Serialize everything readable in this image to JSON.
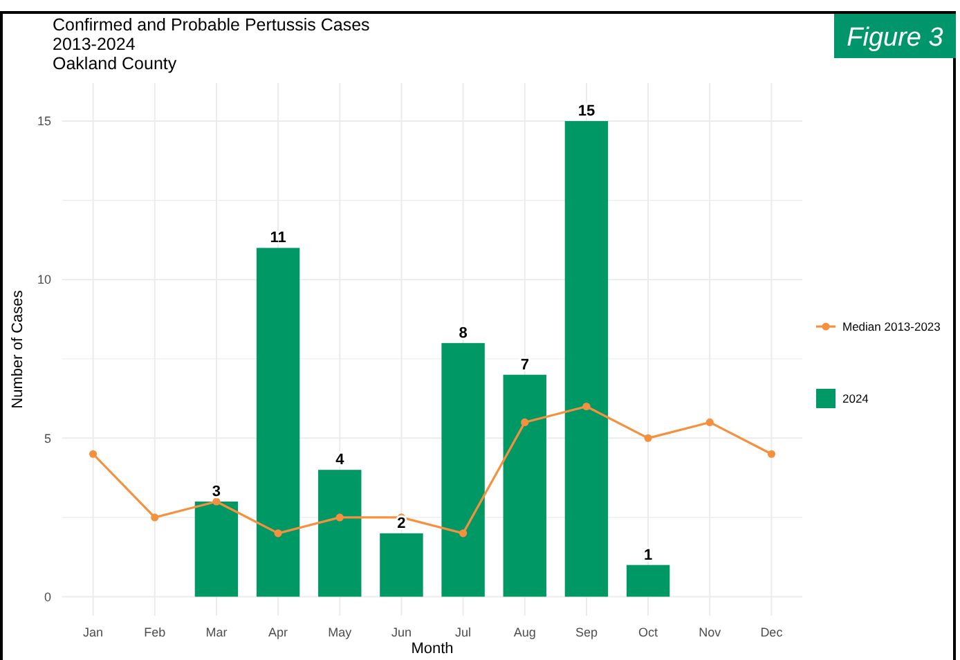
{
  "chart_data": {
    "type": "bar",
    "title": "Confirmed and Probable Pertussis Cases\n2013-2024\nOakland County",
    "xlabel": "Month",
    "ylabel": "Number of Cases",
    "annotations": [
      "Figure 3"
    ],
    "categories": [
      "Jan",
      "Feb",
      "Mar",
      "Apr",
      "May",
      "Jun",
      "Jul",
      "Aug",
      "Sep",
      "Oct",
      "Nov",
      "Dec"
    ],
    "series": [
      {
        "name": "Median 2013-2023",
        "type": "line",
        "color": "#f5913e",
        "values": [
          4.5,
          2.5,
          3,
          2,
          2.5,
          2.5,
          2,
          5.5,
          6,
          5,
          5.5,
          4.5
        ]
      },
      {
        "name": "2024",
        "color": "#009966",
        "values": [
          null,
          null,
          3,
          11,
          4,
          2,
          8,
          7,
          15,
          1,
          null,
          null
        ],
        "value_labels": [
          null,
          null,
          "3",
          "11",
          "4",
          "2",
          "8",
          "7",
          "15",
          "1",
          null,
          null
        ]
      }
    ],
    "ylim": [
      -0.6,
      16.2
    ],
    "yticks": [
      0,
      {
        "value": 2.5,
        "label": null
      },
      5,
      {
        "value": 7.5,
        "label": null
      },
      10,
      {
        "value": 12.5,
        "label": null
      },
      15
    ],
    "grid": true,
    "legend": "right",
    "marker": "circle"
  }
}
